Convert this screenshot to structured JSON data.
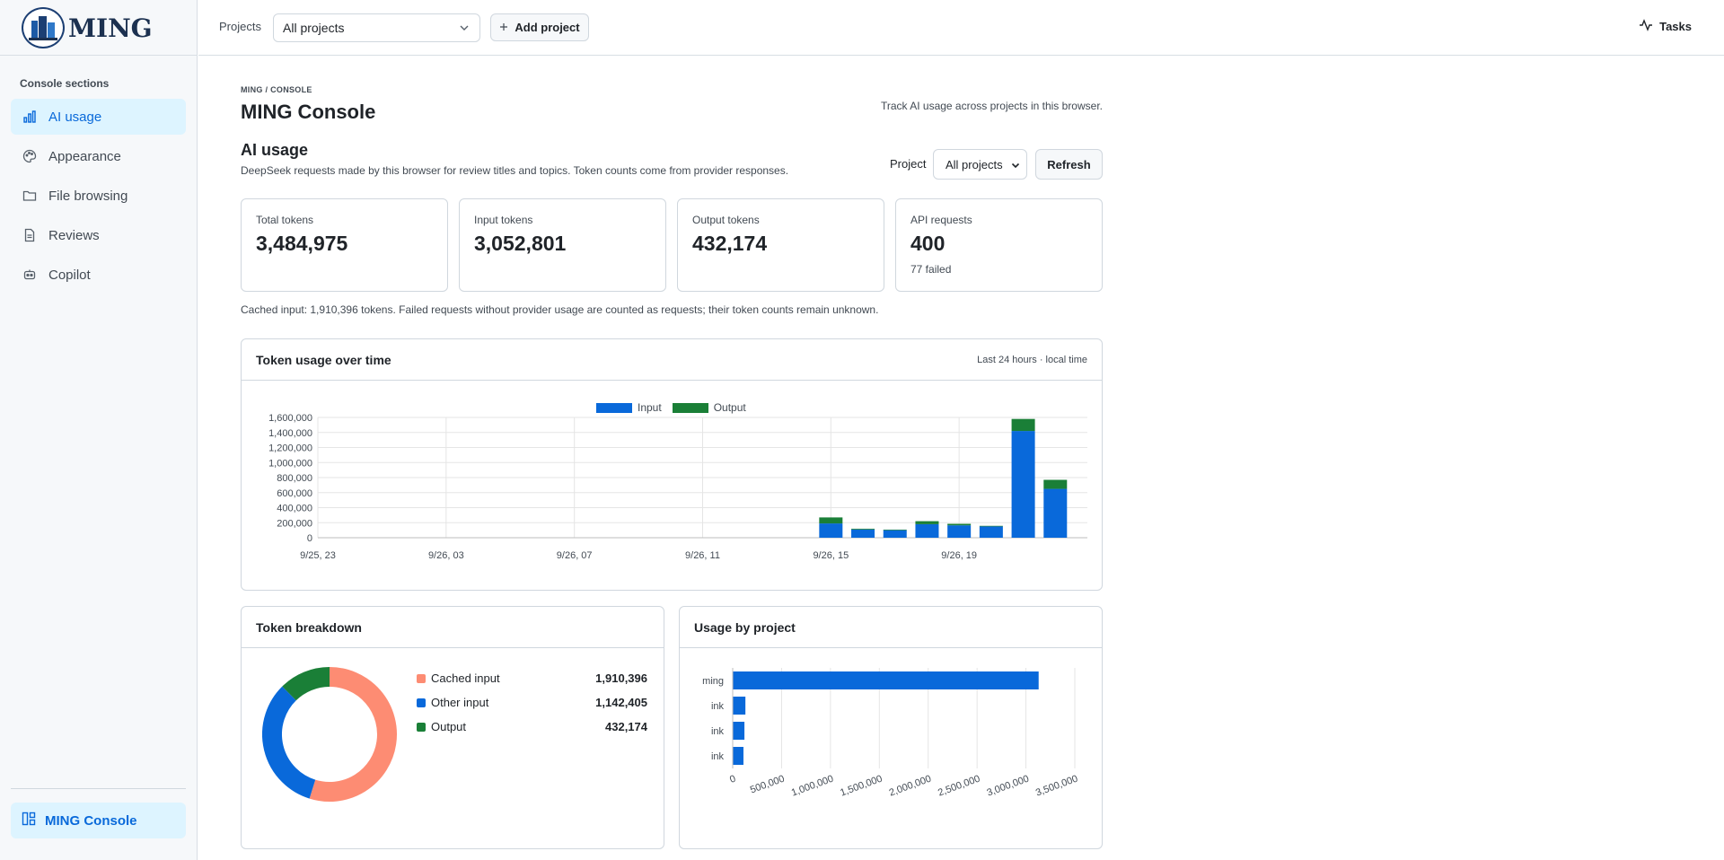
{
  "brand": {
    "name": "MING",
    "logo_icon": "building-logo-icon"
  },
  "sidebar": {
    "section_title": "Console sections",
    "items": [
      {
        "label": "AI usage",
        "icon": "bar-chart-icon",
        "active": true
      },
      {
        "label": "Appearance",
        "icon": "palette-icon",
        "active": false
      },
      {
        "label": "File browsing",
        "icon": "folder-icon",
        "active": false
      },
      {
        "label": "Reviews",
        "icon": "document-icon",
        "active": false
      },
      {
        "label": "Copilot",
        "icon": "robot-icon",
        "active": false
      }
    ],
    "footer_link": "MING Console"
  },
  "topbar": {
    "projects_label": "Projects",
    "projects_value": "All projects",
    "add_project": "Add project",
    "tasks": "Tasks"
  },
  "page": {
    "breadcrumb": "MING / CONSOLE",
    "title": "MING Console",
    "description": "Track AI usage across projects in this browser."
  },
  "ai_usage": {
    "title": "AI usage",
    "description": "DeepSeek requests made by this browser for review titles and topics. Token counts come from provider responses.",
    "project_label": "Project",
    "project_value": "All projects",
    "refresh": "Refresh",
    "stats": [
      {
        "label": "Total tokens",
        "value": "3,484,975",
        "sub": ""
      },
      {
        "label": "Input tokens",
        "value": "3,052,801",
        "sub": ""
      },
      {
        "label": "Output tokens",
        "value": "432,174",
        "sub": ""
      },
      {
        "label": "API requests",
        "value": "400",
        "sub": "77 failed"
      }
    ],
    "cache_note": "Cached input: 1,910,396 tokens. Failed requests without provider usage are counted as requests; their token counts remain unknown."
  },
  "token_chart": {
    "title": "Token usage over time",
    "meta": "Last 24 hours · local time",
    "legend": {
      "input": "Input",
      "output": "Output"
    },
    "colors": {
      "input": "#0969da",
      "output": "#1a7f37"
    }
  },
  "breakdown": {
    "title": "Token breakdown",
    "items": [
      {
        "label": "Cached input",
        "value": "1,910,396",
        "color": "#fd8c73"
      },
      {
        "label": "Other input",
        "value": "1,142,405",
        "color": "#0969da"
      },
      {
        "label": "Output",
        "value": "432,174",
        "color": "#1a7f37"
      }
    ]
  },
  "by_project": {
    "title": "Usage by project"
  },
  "chart_data": [
    {
      "type": "bar",
      "stacked": true,
      "title": "Token usage over time",
      "x_tick_labels": [
        "9/25, 23",
        "9/26, 03",
        "9/26, 07",
        "9/26, 11",
        "9/26, 15",
        "9/26, 19"
      ],
      "categories": [
        "9/26, 15",
        "9/26, 16",
        "9/26, 17",
        "9/26, 18",
        "9/26, 19",
        "9/26, 20",
        "9/26, 21",
        "9/26, 22"
      ],
      "x_positions": [
        16,
        17,
        18,
        19,
        20,
        21,
        22,
        23
      ],
      "x_range": [
        0,
        23
      ],
      "series": [
        {
          "name": "Input",
          "values": [
            190000,
            110000,
            100000,
            180000,
            165000,
            150000,
            1420000,
            650000
          ]
        },
        {
          "name": "Output",
          "values": [
            80000,
            10000,
            8000,
            40000,
            20000,
            8000,
            160000,
            120000
          ]
        }
      ],
      "ylim": [
        0,
        1600000
      ],
      "y_ticks": [
        "0",
        "200,000",
        "400,000",
        "600,000",
        "800,000",
        "1,000,000",
        "1,200,000",
        "1,400,000",
        "1,600,000"
      ],
      "legend_position": "top",
      "grid": true
    },
    {
      "type": "pie",
      "donut": true,
      "title": "Token breakdown",
      "categories": [
        "Cached input",
        "Other input",
        "Output"
      ],
      "values": [
        1910396,
        1142405,
        432174
      ]
    },
    {
      "type": "bar",
      "orientation": "horizontal",
      "title": "Usage by project",
      "categories": [
        "ming",
        "ink",
        "ink",
        "ink"
      ],
      "values": [
        3130000,
        130000,
        120000,
        110000
      ],
      "xlim": [
        0,
        3500000
      ],
      "x_ticks": [
        "0",
        "500,000",
        "1,000,000",
        "1,500,000",
        "2,000,000",
        "2,500,000",
        "3,000,000",
        "3,500,000"
      ],
      "grid": true
    }
  ]
}
